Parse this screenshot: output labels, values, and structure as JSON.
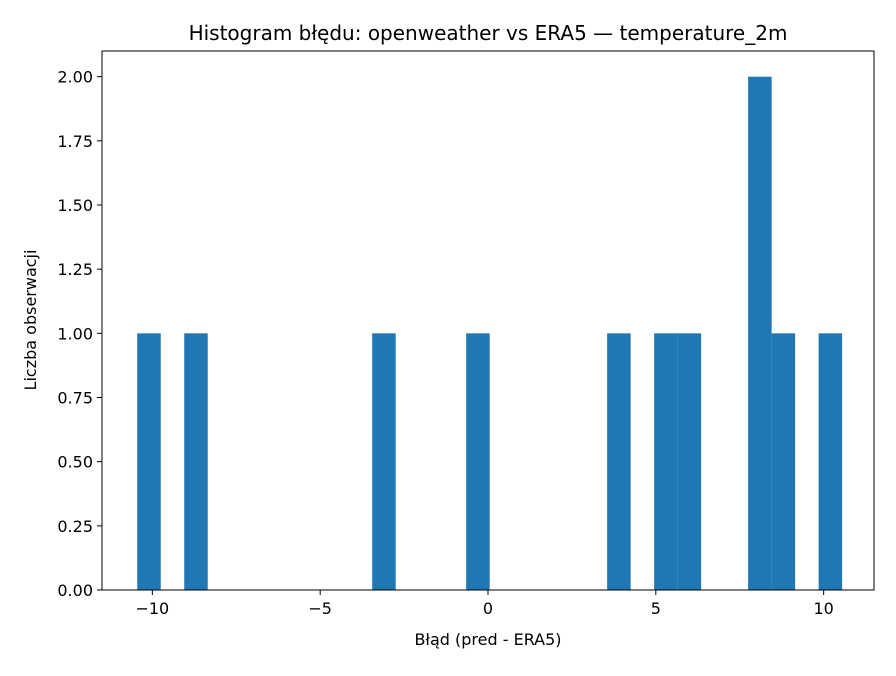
{
  "chart_data": {
    "type": "bar",
    "title": "Histogram błędu: openweather vs ERA5 — temperature_2m",
    "xlabel": "Błąd (pred - ERA5)",
    "ylabel": "Liczba obserwacji",
    "xlim": [
      -11.5,
      11.5
    ],
    "ylim": [
      0,
      2.1
    ],
    "xticks": [
      -10,
      -5,
      0,
      5,
      10
    ],
    "xtick_labels": [
      "−10",
      "−5",
      "0",
      "5",
      "10"
    ],
    "yticks": [
      0,
      0.25,
      0.5,
      0.75,
      1.0,
      1.25,
      1.5,
      1.75,
      2.0
    ],
    "ytick_labels": [
      "0.00",
      "0.25",
      "0.50",
      "0.75",
      "1.00",
      "1.25",
      "1.50",
      "1.75",
      "2.00"
    ],
    "bin_edges": [
      -10.45,
      -9.75,
      -9.05,
      -8.35,
      -7.65,
      -6.95,
      -6.25,
      -5.55,
      -4.85,
      -4.15,
      -3.45,
      -2.75,
      -2.05,
      -1.35,
      -0.65,
      0.05,
      0.75,
      1.45,
      2.15,
      2.85,
      3.55,
      4.25,
      4.95,
      5.65,
      6.35,
      7.05,
      7.75,
      8.45,
      9.15,
      9.85,
      10.55
    ],
    "counts": [
      1,
      0,
      1,
      0,
      0,
      0,
      0,
      0,
      0,
      0,
      1,
      0,
      0,
      0,
      1,
      0,
      0,
      0,
      0,
      0,
      1,
      0,
      1,
      1,
      0,
      0,
      2,
      1,
      0,
      1
    ],
    "bar_color": "#1f77b4",
    "grid": false,
    "legend": "none"
  }
}
